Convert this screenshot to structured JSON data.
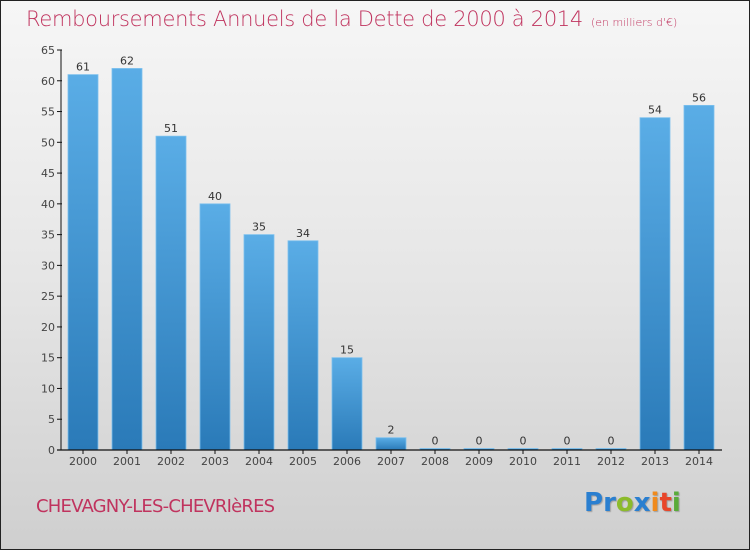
{
  "header": {
    "title": "Remboursements Annuels de la Dette de 2000 à 2014",
    "unit": "(en milliers d'€)"
  },
  "footer": {
    "commune": "CHEVAGNY-LES-CHEVRIèRES",
    "logo": {
      "letters": [
        "P",
        "r",
        "o",
        "x",
        "i",
        "t",
        "i"
      ],
      "colors": [
        "#2a7fd0",
        "#2a7fd0",
        "#8cbb2b",
        "#2a7fd0",
        "#f08a1c",
        "#e8462a",
        "#5aab3a"
      ]
    }
  },
  "colors": {
    "title": "#c0335e",
    "bar_top": "#5aade6",
    "bar_bottom": "#2a7ab8",
    "axis": "#111111"
  },
  "chart_data": {
    "type": "bar",
    "title": "Remboursements Annuels de la Dette de 2000 à 2014",
    "subtitle": "(en milliers d'€)",
    "xlabel": "",
    "ylabel": "",
    "categories": [
      "2000",
      "2001",
      "2002",
      "2003",
      "2004",
      "2005",
      "2006",
      "2007",
      "2008",
      "2009",
      "2010",
      "2011",
      "2012",
      "2013",
      "2014"
    ],
    "values": [
      61,
      62,
      51,
      40,
      35,
      34,
      15,
      2,
      0,
      0,
      0,
      0,
      0,
      54,
      56
    ],
    "ylim": [
      0,
      65
    ],
    "yticks": [
      0,
      5,
      10,
      15,
      20,
      25,
      30,
      35,
      40,
      45,
      50,
      55,
      60,
      65
    ],
    "grid": false,
    "legend": "none",
    "data_labels": true
  }
}
